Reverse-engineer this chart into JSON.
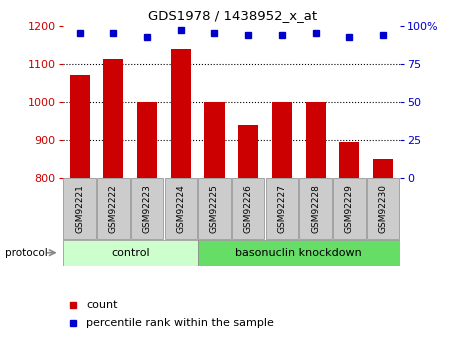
{
  "title": "GDS1978 / 1438952_x_at",
  "samples": [
    "GSM92221",
    "GSM92222",
    "GSM92223",
    "GSM92224",
    "GSM92225",
    "GSM92226",
    "GSM92227",
    "GSM92228",
    "GSM92229",
    "GSM92230"
  ],
  "counts": [
    1070,
    1112,
    1000,
    1140,
    1000,
    940,
    1000,
    1000,
    895,
    848
  ],
  "percentile_ranks": [
    95,
    95,
    93,
    97,
    95,
    94,
    94,
    95,
    93,
    94
  ],
  "ylim_left": [
    800,
    1200
  ],
  "ylim_right": [
    0,
    100
  ],
  "yticks_left": [
    800,
    900,
    1000,
    1100,
    1200
  ],
  "yticks_right": [
    0,
    25,
    50,
    75,
    100
  ],
  "ytick_labels_right": [
    "0",
    "25",
    "50",
    "75",
    "100%"
  ],
  "bar_color": "#cc0000",
  "dot_color": "#0000cc",
  "control_label": "control",
  "knockdown_label": "basonuclin knockdown",
  "control_bg": "#ccffcc",
  "knockdown_bg": "#66dd66",
  "xtick_bg": "#cccccc",
  "protocol_label": "protocol",
  "legend_count": "count",
  "legend_pct": "percentile rank within the sample",
  "left_tick_color": "#cc0000",
  "right_tick_color": "#0000cc",
  "bar_width": 0.6
}
